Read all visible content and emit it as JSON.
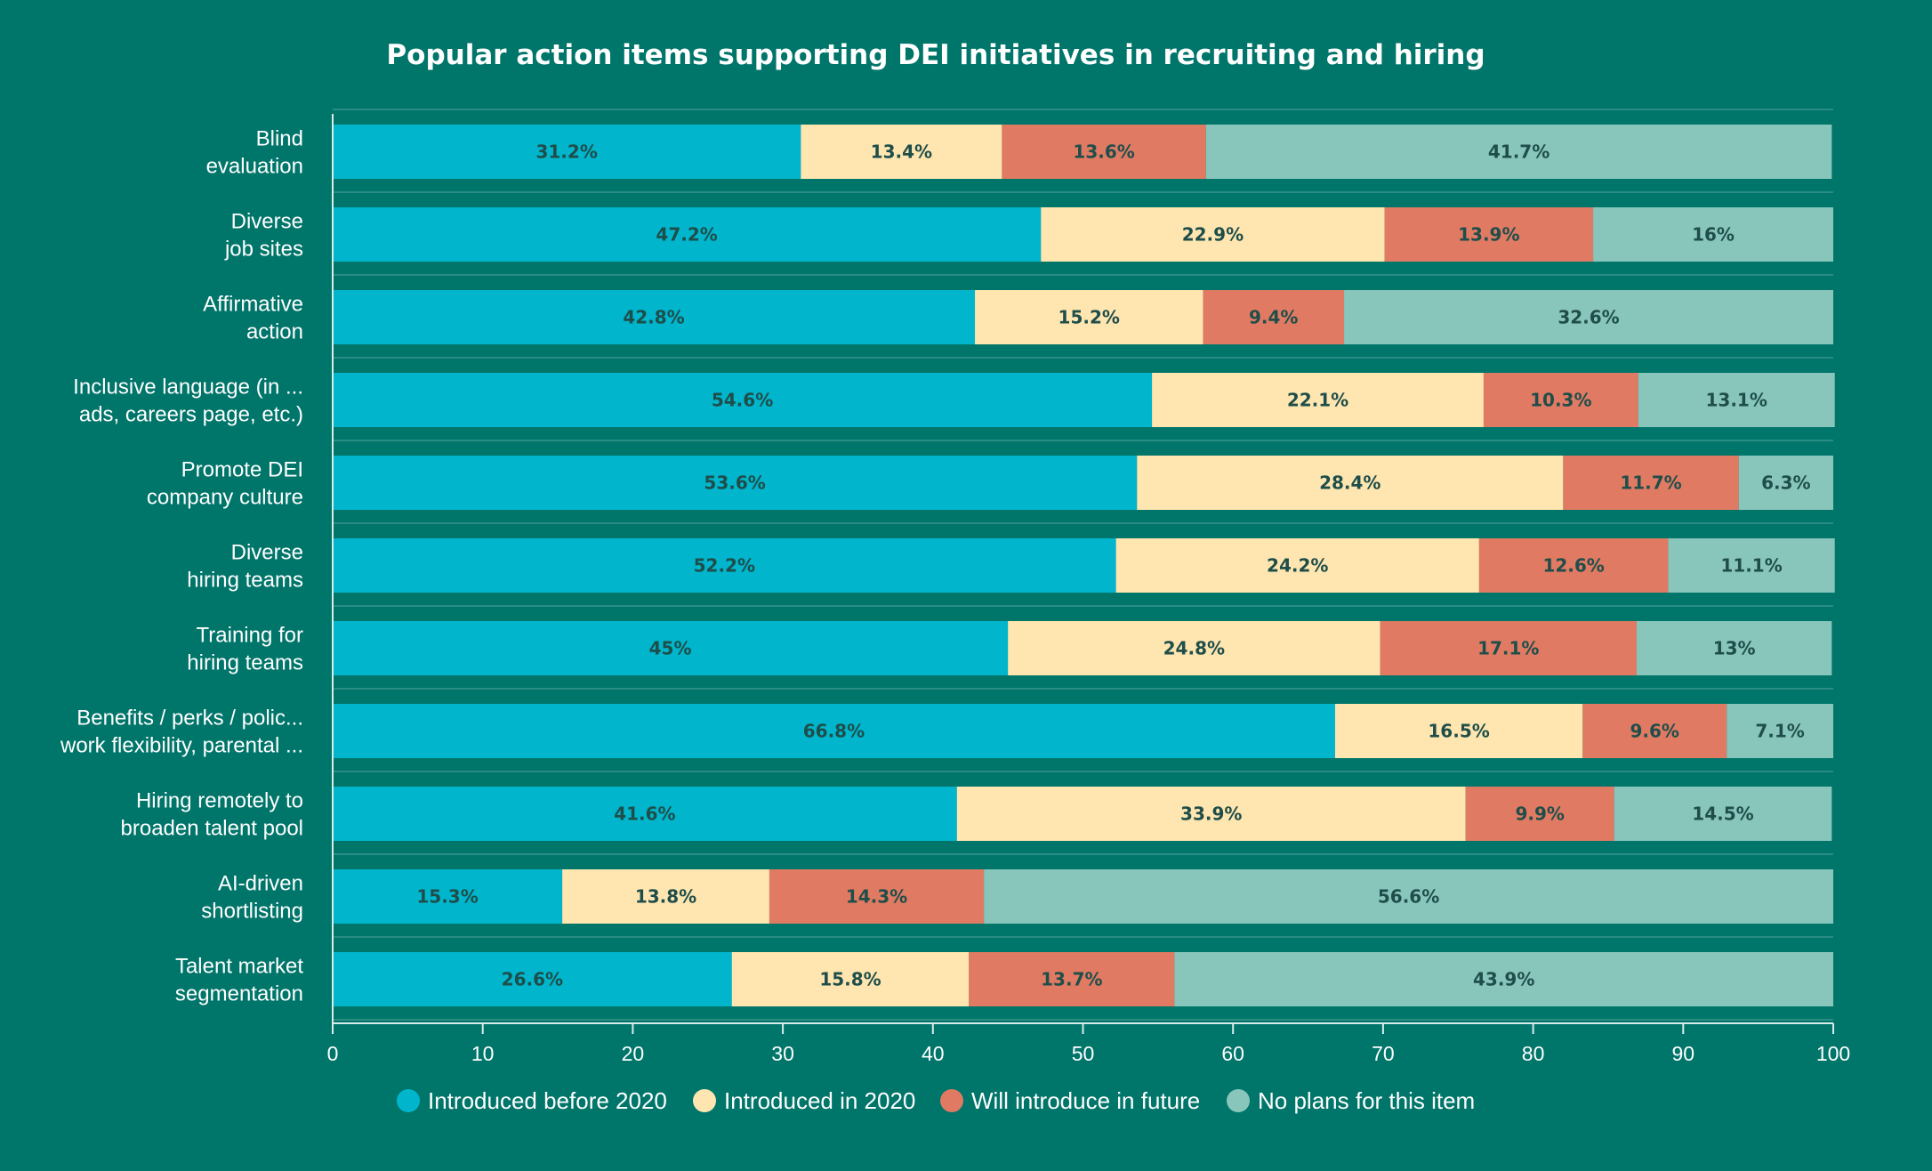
{
  "chart_data": {
    "type": "bar",
    "orientation": "horizontal",
    "stacked": true,
    "title": "Popular action items supporting DEI initiatives in recruiting and hiring",
    "categories": [
      [
        "Blind",
        "evaluation"
      ],
      [
        "Diverse",
        "job sites"
      ],
      [
        "Affirmative",
        "action"
      ],
      [
        "Inclusive language (in ...",
        "ads, careers page, etc.)"
      ],
      [
        "Promote DEI",
        "company culture"
      ],
      [
        "Diverse",
        "hiring teams"
      ],
      [
        "Training for",
        "hiring teams"
      ],
      [
        "Benefits / perks / polic...",
        "work flexibility, parental ..."
      ],
      [
        "Hiring remotely to",
        "broaden talent pool"
      ],
      [
        "AI-driven",
        "shortlisting"
      ],
      [
        "Talent market",
        "segmentation"
      ]
    ],
    "series": [
      {
        "name": "Introduced before 2020",
        "color": "#00B5CC",
        "values": [
          31.2,
          47.2,
          42.8,
          54.6,
          53.6,
          52.2,
          45,
          66.8,
          41.6,
          15.3,
          26.6
        ],
        "labels": [
          "31.2%",
          "47.2%",
          "42.8%",
          "54.6%",
          "53.6%",
          "52.2%",
          "45%",
          "66.8%",
          "41.6%",
          "15.3%",
          "26.6%"
        ]
      },
      {
        "name": "Introduced in 2020",
        "color": "#FFE6B0",
        "values": [
          13.4,
          22.9,
          15.2,
          22.1,
          28.4,
          24.2,
          24.8,
          16.5,
          33.9,
          13.8,
          15.8
        ],
        "labels": [
          "13.4%",
          "22.9%",
          "15.2%",
          "22.1%",
          "28.4%",
          "24.2%",
          "24.8%",
          "16.5%",
          "33.9%",
          "13.8%",
          "15.8%"
        ]
      },
      {
        "name": "Will introduce in future",
        "color": "#E07A63",
        "values": [
          13.6,
          13.9,
          9.4,
          10.3,
          11.7,
          12.6,
          17.1,
          9.6,
          9.9,
          14.3,
          13.7
        ],
        "labels": [
          "13.6%",
          "13.9%",
          "9.4%",
          "10.3%",
          "11.7%",
          "12.6%",
          "17.1%",
          "9.6%",
          "9.9%",
          "14.3%",
          "13.7%"
        ]
      },
      {
        "name": "No plans for this item",
        "color": "#88C6BC",
        "values": [
          41.7,
          16,
          32.6,
          13.1,
          6.3,
          11.1,
          13,
          7.1,
          14.5,
          56.6,
          43.9
        ],
        "labels": [
          "41.7%",
          "16%",
          "32.6%",
          "13.1%",
          "6.3%",
          "11.1%",
          "13%",
          "7.1%",
          "14.5%",
          "56.6%",
          "43.9%"
        ]
      }
    ],
    "xlim": [
      0,
      100
    ],
    "xticks": [
      "0",
      "10",
      "20",
      "30",
      "40",
      "50",
      "60",
      "70",
      "80",
      "90",
      "100"
    ],
    "grid": false,
    "legend": "bottom"
  },
  "colors": {
    "background": "#00756A",
    "text": "#FFFFFF",
    "data_label": "#1F4E4A",
    "axis": "#D9ECE8"
  }
}
